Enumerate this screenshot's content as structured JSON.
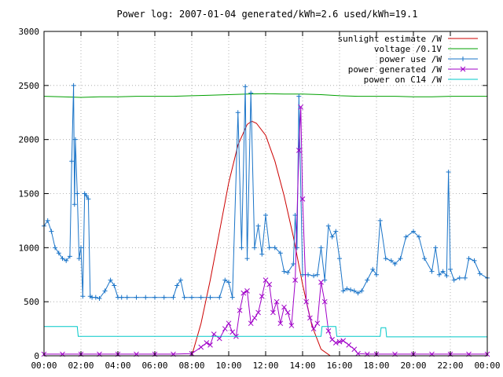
{
  "chart_data": {
    "type": "line",
    "title": "Power log: 2007-01-04 generated/kWh=2.6 used/kWh=19.1",
    "xlabel": "",
    "ylabel": "",
    "xlim": [
      0,
      24
    ],
    "ylim": [
      0,
      3000
    ],
    "x_ticks": [
      "00:00",
      "02:00",
      "04:00",
      "06:00",
      "08:00",
      "10:00",
      "12:00",
      "14:00",
      "16:00",
      "18:00",
      "20:00",
      "22:00",
      "00:00"
    ],
    "y_ticks": [
      "0",
      "500",
      "1000",
      "1500",
      "2000",
      "2500",
      "3000"
    ],
    "grid": true,
    "legend_position": "top-right",
    "series": [
      {
        "name": "sunlight estimate /W",
        "color": "#cc0000",
        "marker": "none",
        "x": [
          8.0,
          8.5,
          9.0,
          9.5,
          10.0,
          10.5,
          11.0,
          11.25,
          11.5,
          12.0,
          12.5,
          13.0,
          13.5,
          14.0,
          14.5,
          15.0,
          15.5,
          16.0
        ],
        "y": [
          0,
          300,
          700,
          1150,
          1600,
          1950,
          2140,
          2170,
          2150,
          2040,
          1800,
          1480,
          1100,
          660,
          280,
          60,
          0,
          0
        ]
      },
      {
        "name": "voltage /0.1V",
        "color": "#00a000",
        "marker": "none",
        "x": [
          0,
          1.0,
          2.0,
          3.0,
          4.0,
          5.0,
          6.0,
          7.0,
          8.0,
          9.0,
          10.0,
          11.0,
          12.0,
          13.0,
          14.0,
          15.0,
          16.0,
          17.0,
          18.0,
          19.0,
          20.0,
          21.0,
          22.0,
          23.0,
          24.0
        ],
        "y": [
          2400,
          2395,
          2390,
          2395,
          2395,
          2400,
          2400,
          2400,
          2405,
          2410,
          2415,
          2420,
          2425,
          2420,
          2420,
          2415,
          2405,
          2400,
          2400,
          2400,
          2395,
          2395,
          2400,
          2400,
          2400
        ]
      },
      {
        "name": "power use /W",
        "color": "#1a74c8",
        "marker": "plus",
        "x": [
          0.0,
          0.2,
          0.4,
          0.6,
          0.8,
          1.0,
          1.2,
          1.4,
          1.5,
          1.6,
          1.65,
          1.7,
          1.8,
          1.9,
          2.0,
          2.1,
          2.2,
          2.3,
          2.4,
          2.5,
          2.6,
          2.8,
          3.0,
          3.3,
          3.6,
          3.8,
          4.0,
          4.2,
          4.5,
          5.0,
          5.5,
          6.0,
          6.5,
          7.0,
          7.2,
          7.4,
          7.6,
          8.0,
          8.5,
          9.0,
          9.5,
          9.8,
          10.0,
          10.2,
          10.5,
          10.7,
          10.9,
          11.0,
          11.2,
          11.4,
          11.6,
          11.8,
          12.0,
          12.2,
          12.5,
          12.8,
          13.0,
          13.2,
          13.5,
          13.6,
          13.7,
          13.8,
          14.0,
          14.3,
          14.6,
          14.8,
          15.0,
          15.2,
          15.4,
          15.6,
          15.8,
          16.0,
          16.2,
          16.4,
          16.6,
          16.8,
          17.0,
          17.2,
          17.5,
          17.8,
          18.0,
          18.2,
          18.5,
          18.8,
          19.0,
          19.3,
          19.6,
          20.0,
          20.3,
          20.6,
          21.0,
          21.2,
          21.4,
          21.6,
          21.8,
          21.9,
          22.0,
          22.2,
          22.5,
          22.8,
          23.0,
          23.3,
          23.6,
          24.0
        ],
        "y": [
          1200,
          1250,
          1150,
          1000,
          950,
          900,
          880,
          920,
          1800,
          2500,
          1400,
          2000,
          1500,
          900,
          1000,
          550,
          1500,
          1480,
          1450,
          550,
          540,
          540,
          530,
          600,
          700,
          650,
          540,
          540,
          540,
          540,
          540,
          540,
          540,
          540,
          650,
          700,
          540,
          540,
          540,
          540,
          540,
          700,
          680,
          540,
          2250,
          1000,
          2490,
          900,
          2430,
          1000,
          1200,
          940,
          1300,
          1000,
          1000,
          950,
          780,
          770,
          850,
          1300,
          1000,
          2400,
          750,
          750,
          740,
          750,
          1000,
          700,
          1200,
          1100,
          1150,
          900,
          600,
          620,
          610,
          600,
          580,
          600,
          700,
          800,
          750,
          1250,
          900,
          880,
          850,
          900,
          1100,
          1150,
          1100,
          900,
          780,
          1000,
          750,
          780,
          740,
          1700,
          800,
          700,
          720,
          720,
          900,
          880,
          760,
          720
        ]
      },
      {
        "name": "power generated /W",
        "color": "#a000c8",
        "marker": "cross",
        "x": [
          0,
          1.0,
          2.0,
          3.0,
          4.0,
          5.0,
          6.0,
          7.0,
          8.0,
          8.5,
          8.8,
          9.0,
          9.2,
          9.5,
          9.8,
          10.0,
          10.2,
          10.4,
          10.6,
          10.8,
          11.0,
          11.2,
          11.4,
          11.6,
          11.8,
          12.0,
          12.2,
          12.4,
          12.6,
          12.8,
          13.0,
          13.2,
          13.4,
          13.6,
          13.8,
          13.9,
          14.0,
          14.2,
          14.4,
          14.6,
          14.8,
          15.0,
          15.2,
          15.4,
          15.6,
          15.8,
          16.0,
          16.2,
          16.5,
          16.8,
          17.0,
          17.5,
          18.0,
          19.0,
          20.0,
          21.0,
          22.0,
          23.0,
          24.0
        ],
        "y": [
          15,
          15,
          15,
          15,
          15,
          15,
          15,
          15,
          20,
          80,
          120,
          100,
          200,
          160,
          250,
          300,
          220,
          180,
          420,
          580,
          600,
          300,
          350,
          400,
          550,
          700,
          660,
          400,
          500,
          300,
          450,
          400,
          280,
          700,
          1900,
          2300,
          1450,
          500,
          350,
          250,
          300,
          680,
          500,
          230,
          150,
          120,
          130,
          140,
          100,
          60,
          20,
          15,
          15,
          15,
          15,
          15,
          15,
          15,
          15
        ]
      },
      {
        "name": "power on C14 /W",
        "color": "#00c8c8",
        "marker": "none",
        "x": [
          0,
          1.8,
          1.85,
          12.5,
          12.55,
          15.0,
          15.05,
          15.8,
          15.85,
          18.2,
          18.25,
          18.5,
          18.55,
          24.0
        ],
        "y": [
          270,
          270,
          180,
          180,
          180,
          180,
          270,
          270,
          180,
          180,
          260,
          260,
          175,
          175
        ]
      }
    ]
  }
}
